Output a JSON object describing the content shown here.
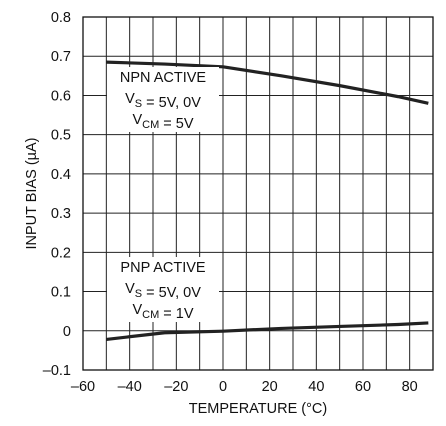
{
  "chart_data": {
    "type": "line",
    "title": "",
    "xlabel": "TEMPERATURE (°C)",
    "ylabel": "INPUT BIAS (µA)",
    "xlim": [
      -60,
      90
    ],
    "ylim": [
      -0.1,
      0.8
    ],
    "x_ticks": [
      "–60",
      "–40",
      "–20",
      "0",
      "20",
      "40",
      "60",
      "80"
    ],
    "y_ticks": [
      "–0.1",
      "0",
      "0.1",
      "0.2",
      "0.3",
      "0.4",
      "0.5",
      "0.6",
      "0.7",
      "0.8"
    ],
    "grid": true,
    "series": [
      {
        "x": [
          -50,
          -25,
          0,
          25,
          50,
          75,
          88
        ],
        "y": [
          0.685,
          0.68,
          0.673,
          0.65,
          0.625,
          0.597,
          0.58
        ]
      },
      {
        "x": [
          -50,
          -25,
          0,
          25,
          50,
          75,
          88
        ],
        "y": [
          -0.022,
          -0.005,
          -0.001,
          0.006,
          0.011,
          0.016,
          0.02
        ]
      }
    ],
    "annotations": [
      {
        "lines": [
          {
            "parts": [
              {
                "t": "NPN ACTIVE"
              }
            ]
          },
          {
            "parts": [
              {
                "t": "V"
              },
              {
                "t": "S",
                "sub": true
              },
              {
                "t": " = 5V, 0V"
              }
            ]
          },
          {
            "parts": [
              {
                "t": "V"
              },
              {
                "t": "CM",
                "sub": true
              },
              {
                "t": " = 5V"
              }
            ]
          }
        ]
      },
      {
        "lines": [
          {
            "parts": [
              {
                "t": "PNP ACTIVE"
              }
            ]
          },
          {
            "parts": [
              {
                "t": "V"
              },
              {
                "t": "S",
                "sub": true
              },
              {
                "t": " = 5V, 0V"
              }
            ]
          },
          {
            "parts": [
              {
                "t": "V"
              },
              {
                "t": "CM",
                "sub": true
              },
              {
                "t": " = 1V"
              }
            ]
          }
        ]
      }
    ]
  }
}
